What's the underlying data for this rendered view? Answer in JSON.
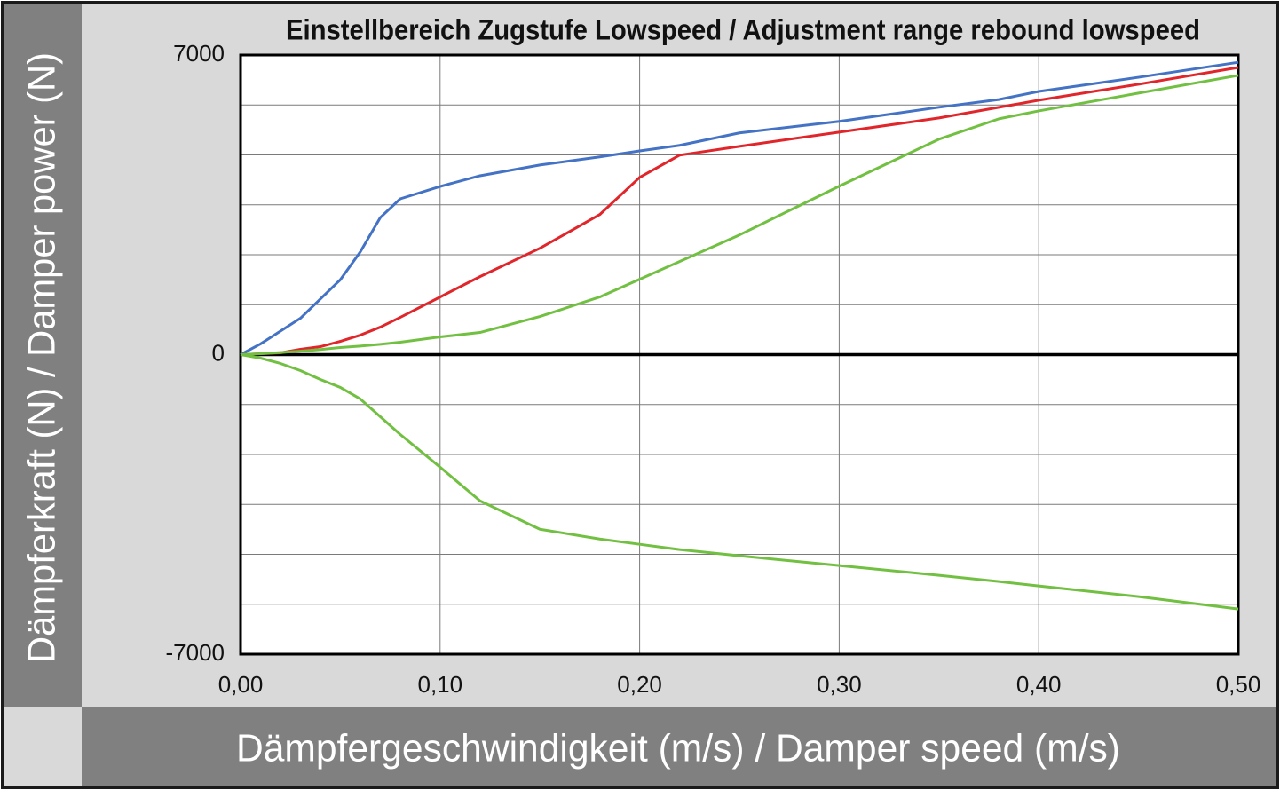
{
  "chart_data": {
    "type": "line",
    "title": "Einstellbereich Zugstufe Lowspeed / Adjustment range rebound lowspeed",
    "x_label": "Dämpfergeschwindigkeit (m/s) / Damper speed (m/s)",
    "y_label": "Dämpferkraft (N) / Damper power (N)",
    "x": [
      0,
      0.01,
      0.02,
      0.03,
      0.04,
      0.05,
      0.06,
      0.07,
      0.08,
      0.1,
      0.12,
      0.15,
      0.18,
      0.2,
      0.22,
      0.25,
      0.3,
      0.35,
      0.38,
      0.4,
      0.45,
      0.5
    ],
    "series": [
      {
        "color": "#4472c4",
        "values": [
          0,
          250,
          550,
          850,
          1300,
          1750,
          2400,
          3200,
          3640,
          3930,
          4180,
          4430,
          4620,
          4760,
          4890,
          5180,
          5450,
          5780,
          5960,
          6150,
          6480,
          6830
        ]
      },
      {
        "color": "#e0262b",
        "values": [
          0,
          20,
          41,
          124,
          186,
          311,
          456,
          642,
          870,
          1346,
          1823,
          2485,
          3272,
          4142,
          4660,
          4867,
          5198,
          5530,
          5779,
          5944,
          6317,
          6710
        ]
      },
      {
        "color": "#72c042",
        "values": [
          0,
          20,
          50,
          80,
          120,
          166,
          200,
          240,
          290,
          414,
          518,
          890,
          1346,
          1760,
          2175,
          2796,
          3935,
          5033,
          5509,
          5695,
          6110,
          6524
        ]
      },
      {
        "color": "#72c042",
        "values": [
          0,
          -83,
          -207,
          -373,
          -580,
          -766,
          -1036,
          -1450,
          -1864,
          -2630,
          -3417,
          -4080,
          -4308,
          -4432,
          -4556,
          -4701,
          -4929,
          -5157,
          -5302,
          -5405,
          -5654,
          -5944
        ]
      }
    ],
    "xlim": [
      0,
      0.5
    ],
    "xticks": [
      {
        "value": 0,
        "label": "0,00"
      },
      {
        "value": 0.1,
        "label": "0,10"
      },
      {
        "value": 0.2,
        "label": "0,20"
      },
      {
        "value": 0.3,
        "label": "0,30"
      },
      {
        "value": 0.4,
        "label": "0,40"
      },
      {
        "value": 0.5,
        "label": "0,50"
      }
    ],
    "ylim": [
      -7000,
      7000
    ],
    "yticks": [
      7000,
      0,
      -7000
    ],
    "ygrid": [
      -5833.33,
      -4666.67,
      -3500,
      -2333.33,
      -1166.67,
      1166.67,
      2333.33,
      3500,
      4666.67,
      5833.33
    ],
    "grid": true
  }
}
